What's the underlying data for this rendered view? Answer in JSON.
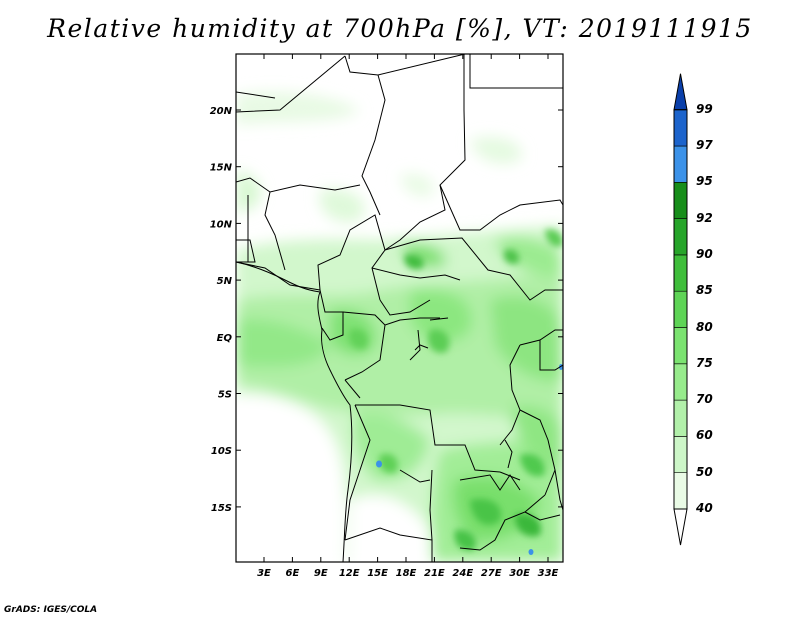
{
  "title": "Relative humidity at 700hPa [%], VT: 2019111915",
  "map": {
    "lat_labels": [
      "20N",
      "15N",
      "10N",
      "5N",
      "EQ",
      "5S",
      "10S",
      "15S"
    ],
    "lon_labels": [
      "3E",
      "6E",
      "9E",
      "12E",
      "15E",
      "18E",
      "21E",
      "24E",
      "27E",
      "30E",
      "33E"
    ]
  },
  "colorbar": {
    "levels": [
      "40",
      "50",
      "60",
      "70",
      "75",
      "80",
      "85",
      "90",
      "92",
      "95",
      "97",
      "99"
    ],
    "colors": [
      "#ffffff",
      "#eafbe6",
      "#cdf6c8",
      "#b2f0aa",
      "#97eb8c",
      "#7be370",
      "#5ed456",
      "#3fbe3b",
      "#27a52a",
      "#178e1a",
      "#3c92e8",
      "#1c64cc",
      "#0a3faa"
    ]
  },
  "credit": "GrADS: IGES/COLA"
}
